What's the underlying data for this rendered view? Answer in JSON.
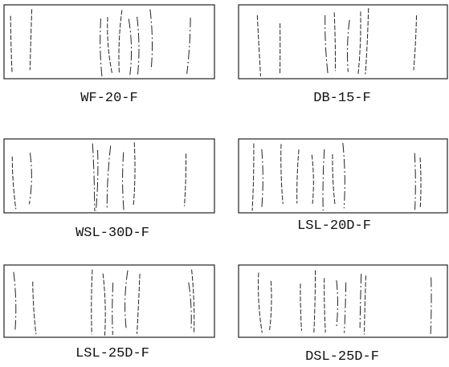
{
  "panels": [
    {
      "label": "WF-20-F"
    },
    {
      "label": "DB-15-F"
    },
    {
      "label": "WSL-30D-F"
    },
    {
      "label": "LSL-20D-F"
    },
    {
      "label": "LSL-25D-F"
    },
    {
      "label": "DSL-25D-F"
    }
  ]
}
